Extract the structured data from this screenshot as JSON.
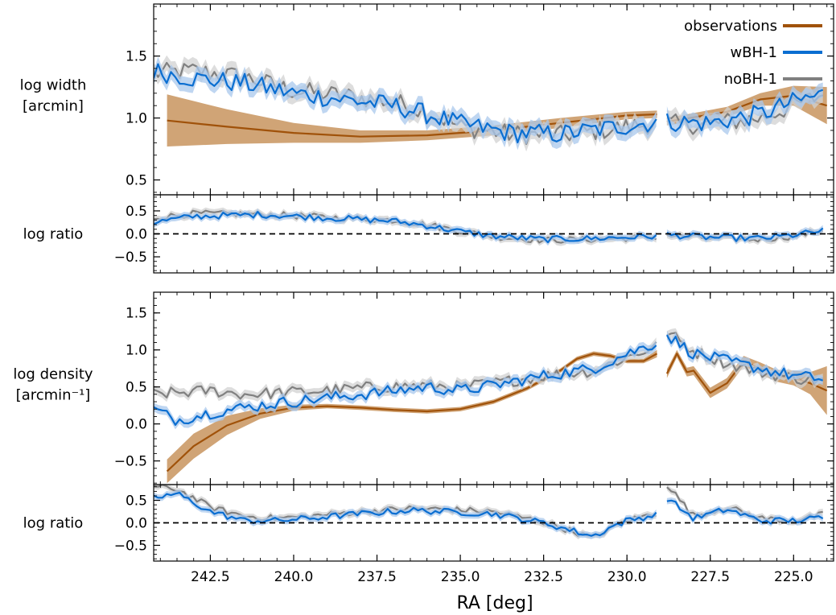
{
  "colors": {
    "observations": "#a0520a",
    "observations_band": "#c8945e",
    "wBH": "#0a6ed1",
    "wBH_band": "#a9c8ec",
    "noBH": "#808080",
    "noBH_band": "#d2d2d2"
  },
  "figure": {
    "xlabel": "RA [deg]",
    "x_ticks": [
      "242.5",
      "240.0",
      "237.5",
      "235.0",
      "232.5",
      "230.0",
      "227.5",
      "225.0"
    ],
    "x_tick_values": [
      242.5,
      240.0,
      237.5,
      235.0,
      232.5,
      230.0,
      227.5,
      225.0
    ],
    "xlim": [
      244.2,
      223.8
    ],
    "x_inverted": true
  },
  "legend": {
    "placement": "top-right",
    "entries": [
      {
        "label": "observations",
        "color": "#a0520a"
      },
      {
        "label": "wBH-1",
        "color": "#0a6ed1"
      },
      {
        "label": "noBH-1",
        "color": "#808080"
      }
    ]
  },
  "chart_data": [
    {
      "type": "line",
      "panel": "width",
      "ylabel_line1": "log width",
      "ylabel_line2": "[arcmin]",
      "ylim": [
        0.38,
        1.92
      ],
      "y_ticks": [
        "0.5",
        "1.0",
        "1.5"
      ],
      "y_tick_values": [
        0.5,
        1.0,
        1.5
      ],
      "gap_x": [
        229.1,
        228.8
      ],
      "observations": {
        "x": [
          243.8,
          242.0,
          240.0,
          238.0,
          236.0,
          234.0,
          232.0,
          230.0,
          229.1,
          228.8,
          227.0,
          226.0,
          225.0,
          224.0
        ],
        "y": [
          0.98,
          0.93,
          0.88,
          0.85,
          0.86,
          0.9,
          0.96,
          1.02,
          1.03,
          0.97,
          1.05,
          1.15,
          1.18,
          1.1
        ],
        "lower": [
          0.77,
          0.79,
          0.8,
          0.8,
          0.82,
          0.86,
          0.92,
          0.99,
          1.0,
          0.94,
          1.01,
          1.1,
          1.1,
          0.95
        ],
        "upper": [
          1.19,
          1.07,
          0.96,
          0.9,
          0.9,
          0.94,
          1.0,
          1.05,
          1.06,
          1.0,
          1.09,
          1.2,
          1.26,
          1.25
        ]
      },
      "series": [
        {
          "name": "wBH-1",
          "knots_x": [
            244.2,
            243.0,
            241.5,
            240.0,
            238.5,
            237.0,
            236.0,
            235.0,
            233.5,
            232.0,
            230.5,
            229.1
          ],
          "knots_y": [
            1.38,
            1.32,
            1.28,
            1.2,
            1.15,
            1.1,
            1.03,
            0.95,
            0.88,
            0.87,
            0.92,
            0.97
          ],
          "knots_x2": [
            228.8,
            227.5,
            226.0,
            225.0,
            224.0
          ],
          "knots_y2": [
            0.97,
            0.96,
            1.03,
            1.13,
            1.2
          ]
        },
        {
          "name": "noBH-1",
          "knots_x": [
            244.2,
            243.0,
            241.5,
            240.0,
            238.5,
            237.0,
            236.0,
            235.0,
            233.5,
            232.0,
            230.5,
            229.1
          ],
          "knots_y": [
            1.36,
            1.38,
            1.33,
            1.22,
            1.18,
            1.13,
            1.05,
            0.93,
            0.87,
            0.86,
            0.91,
            0.96
          ],
          "knots_x2": [
            228.8,
            227.5,
            226.0,
            225.0,
            224.0
          ],
          "knots_y2": [
            0.95,
            0.95,
            1.0,
            1.1,
            1.2
          ]
        }
      ]
    },
    {
      "type": "line",
      "panel": "width_ratio",
      "ylabel_line1": "log ratio",
      "ylim": [
        -0.85,
        0.85
      ],
      "y_ticks": [
        "−0.5",
        "0.0",
        "0.5"
      ],
      "y_tick_values": [
        -0.5,
        0.0,
        0.5
      ],
      "reference_line": 0.0,
      "gap_x": [
        229.1,
        228.8
      ],
      "series": [
        {
          "name": "wBH-1",
          "knots_x": [
            244.2,
            243.0,
            241.0,
            239.0,
            237.0,
            236.0,
            235.0,
            234.0,
            232.5,
            231.0,
            229.1
          ],
          "knots_y": [
            0.25,
            0.38,
            0.42,
            0.35,
            0.28,
            0.18,
            0.05,
            -0.05,
            -0.12,
            -0.1,
            -0.05
          ],
          "knots_x2": [
            228.8,
            227.5,
            226.0,
            225.0,
            224.0
          ],
          "knots_y2": [
            -0.02,
            -0.08,
            -0.1,
            -0.03,
            0.08
          ]
        },
        {
          "name": "noBH-1",
          "knots_x": [
            244.2,
            243.0,
            241.0,
            239.0,
            237.0,
            236.0,
            235.0,
            234.0,
            232.5,
            231.0,
            229.1
          ],
          "knots_y": [
            0.35,
            0.44,
            0.43,
            0.36,
            0.3,
            0.2,
            0.06,
            -0.06,
            -0.14,
            -0.12,
            -0.07
          ],
          "knots_x2": [
            228.8,
            227.5,
            226.0,
            225.0,
            224.0
          ],
          "knots_y2": [
            -0.03,
            -0.1,
            -0.12,
            -0.05,
            0.1
          ]
        }
      ]
    },
    {
      "type": "line",
      "panel": "density",
      "ylabel_line1": "log density",
      "ylabel_line2": "[arcmin⁻¹]",
      "ylim": [
        -0.82,
        1.78
      ],
      "y_ticks": [
        "−0.5",
        "0.0",
        "0.5",
        "1.0",
        "1.5"
      ],
      "y_tick_values": [
        -0.5,
        0.0,
        0.5,
        1.0,
        1.5
      ],
      "gap_x": [
        229.1,
        228.8
      ],
      "observations": {
        "x": [
          243.8,
          243.0,
          242.0,
          241.0,
          240.0,
          239.0,
          238.0,
          237.0,
          236.0,
          235.0,
          234.0,
          233.0,
          232.0,
          231.5,
          231.0,
          230.5,
          230.0,
          229.5,
          229.1,
          228.8,
          228.5,
          228.2,
          228.0,
          227.5,
          227.0,
          226.5,
          226.0,
          225.5,
          225.0,
          224.5,
          224.0
        ],
        "y": [
          -0.64,
          -0.3,
          -0.02,
          0.14,
          0.22,
          0.24,
          0.22,
          0.19,
          0.17,
          0.2,
          0.3,
          0.48,
          0.72,
          0.88,
          0.95,
          0.92,
          0.85,
          0.85,
          0.95,
          0.68,
          0.95,
          0.7,
          0.72,
          0.42,
          0.55,
          0.85,
          0.75,
          0.65,
          0.62,
          0.55,
          0.45
        ],
        "lower": [
          -0.8,
          -0.47,
          -0.15,
          0.07,
          0.18,
          0.21,
          0.19,
          0.16,
          0.14,
          0.17,
          0.27,
          0.45,
          0.69,
          0.85,
          0.92,
          0.89,
          0.82,
          0.82,
          0.9,
          0.62,
          0.9,
          0.64,
          0.66,
          0.35,
          0.48,
          0.78,
          0.67,
          0.57,
          0.52,
          0.4,
          0.12
        ],
        "upper": [
          -0.48,
          -0.13,
          0.11,
          0.21,
          0.26,
          0.27,
          0.25,
          0.22,
          0.2,
          0.23,
          0.33,
          0.51,
          0.75,
          0.91,
          0.98,
          0.95,
          0.88,
          0.88,
          1.0,
          0.74,
          1.0,
          0.76,
          0.78,
          0.49,
          0.62,
          0.92,
          0.83,
          0.73,
          0.72,
          0.7,
          0.78
        ]
      },
      "series": [
        {
          "name": "wBH-1",
          "knots_x": [
            244.2,
            243.5,
            242.5,
            241.5,
            240.5,
            239.0,
            237.5,
            236.0,
            235.0,
            234.0,
            232.5,
            231.0,
            230.0,
            229.1
          ],
          "knots_y": [
            0.2,
            0.05,
            0.15,
            0.22,
            0.28,
            0.35,
            0.42,
            0.5,
            0.45,
            0.52,
            0.65,
            0.75,
            0.95,
            1.1
          ],
          "knots_x2": [
            228.8,
            228.0,
            227.0,
            226.0,
            225.0,
            224.0
          ],
          "knots_y2": [
            1.2,
            0.95,
            0.85,
            0.75,
            0.65,
            0.6
          ]
        },
        {
          "name": "noBH-1",
          "knots_x": [
            244.2,
            243.5,
            242.5,
            241.5,
            240.5,
            239.0,
            237.5,
            236.0,
            235.0,
            234.0,
            232.5,
            231.0,
            230.0,
            229.1
          ],
          "knots_y": [
            0.4,
            0.42,
            0.45,
            0.4,
            0.42,
            0.45,
            0.5,
            0.52,
            0.5,
            0.55,
            0.65,
            0.72,
            0.9,
            1.05
          ],
          "knots_x2": [
            228.8,
            228.0,
            227.0,
            226.0,
            225.0,
            224.0
          ],
          "knots_y2": [
            1.25,
            0.98,
            0.82,
            0.7,
            0.62,
            0.58
          ]
        }
      ]
    },
    {
      "type": "line",
      "panel": "density_ratio",
      "ylabel_line1": "log ratio",
      "ylim": [
        -0.85,
        0.85
      ],
      "y_ticks": [
        "−0.5",
        "0.0",
        "0.5"
      ],
      "y_tick_values": [
        -0.5,
        0.0,
        0.5
      ],
      "reference_line": 0.0,
      "gap_x": [
        229.1,
        228.8
      ],
      "series": [
        {
          "name": "wBH-1",
          "knots_x": [
            244.2,
            243.5,
            242.5,
            241.5,
            240.5,
            239.5,
            238.0,
            236.5,
            235.5,
            234.0,
            232.5,
            231.5,
            231.0,
            230.5,
            230.0,
            229.1
          ],
          "knots_y": [
            0.55,
            0.65,
            0.25,
            0.05,
            0.05,
            0.1,
            0.2,
            0.28,
            0.25,
            0.2,
            0.0,
            -0.2,
            -0.3,
            -0.1,
            0.05,
            0.18
          ],
          "knots_x2": [
            228.8,
            228.0,
            227.0,
            226.0,
            225.0,
            224.0
          ],
          "knots_y2": [
            0.55,
            0.1,
            0.3,
            0.05,
            0.05,
            0.12
          ]
        },
        {
          "name": "noBH-1",
          "knots_x": [
            244.2,
            243.5,
            242.5,
            241.5,
            240.5,
            239.5,
            238.0,
            236.5,
            235.5,
            234.0,
            232.5,
            231.5,
            231.0,
            230.5,
            230.0,
            229.1
          ],
          "knots_y": [
            0.8,
            0.75,
            0.35,
            0.15,
            0.1,
            0.15,
            0.25,
            0.32,
            0.3,
            0.25,
            0.02,
            -0.22,
            -0.35,
            -0.12,
            0.05,
            0.22
          ],
          "knots_x2": [
            228.8,
            228.0,
            227.0,
            226.0,
            225.0,
            224.0
          ],
          "knots_y2": [
            0.85,
            0.15,
            0.35,
            0.1,
            0.05,
            0.2
          ]
        }
      ]
    }
  ]
}
